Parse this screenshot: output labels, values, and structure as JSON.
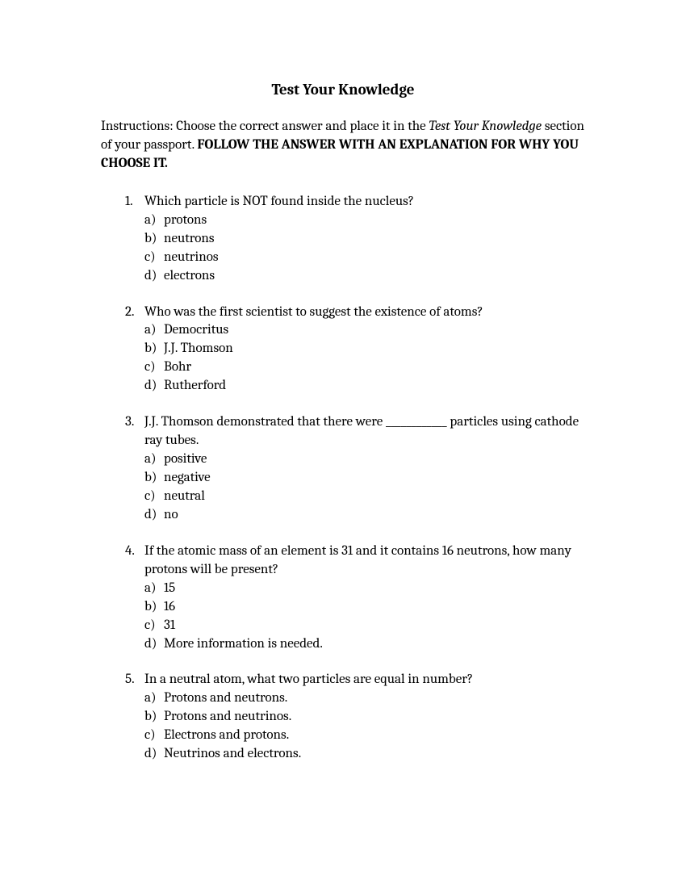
{
  "title": "Test Your Knowledge",
  "instructions": {
    "prefix": "Instructions: Choose the correct answer and place it in the ",
    "italic": "Test Your Knowledge",
    "middle": " section of your passport. ",
    "bold": "FOLLOW THE ANSWER WITH AN EXPLANATION FOR WHY YOU CHOOSE IT."
  },
  "questions": [
    {
      "number": "1.",
      "text": "Which particle is NOT found inside the nucleus?",
      "options": [
        {
          "letter": "a)",
          "text": "protons"
        },
        {
          "letter": "b)",
          "text": "neutrons"
        },
        {
          "letter": "c)",
          "text": "neutrinos"
        },
        {
          "letter": "d)",
          "text": "electrons"
        }
      ]
    },
    {
      "number": "2.",
      "text": "Who was the first scientist to suggest the existence of atoms?",
      "options": [
        {
          "letter": "a)",
          "text": "Democritus"
        },
        {
          "letter": "b)",
          "text": "J.J. Thomson"
        },
        {
          "letter": "c)",
          "text": "Bohr"
        },
        {
          "letter": "d)",
          "text": "Rutherford"
        }
      ]
    },
    {
      "number": "3.",
      "text": "J.J. Thomson demonstrated that there were ____________ particles using cathode ray tubes.",
      "options": [
        {
          "letter": "a)",
          "text": "positive"
        },
        {
          "letter": "b)",
          "text": "negative"
        },
        {
          "letter": "c)",
          "text": "neutral"
        },
        {
          "letter": "d)",
          "text": "no"
        }
      ]
    },
    {
      "number": "4.",
      "text": "If the atomic mass of an element is 31 and it contains 16 neutrons, how many protons will be present?",
      "options": [
        {
          "letter": "a)",
          "text": "15"
        },
        {
          "letter": "b)",
          "text": "16"
        },
        {
          "letter": "c)",
          "text": "31"
        },
        {
          "letter": "d)",
          "text": "More information is needed."
        }
      ]
    },
    {
      "number": "5.",
      "text": "In a neutral atom, what two particles are equal in number?",
      "options": [
        {
          "letter": "a)",
          "text": "Protons and neutrons."
        },
        {
          "letter": "b)",
          "text": "Protons and neutrinos."
        },
        {
          "letter": "c)",
          "text": "Electrons and protons."
        },
        {
          "letter": "d)",
          "text": "Neutrinos and electrons."
        }
      ]
    }
  ]
}
